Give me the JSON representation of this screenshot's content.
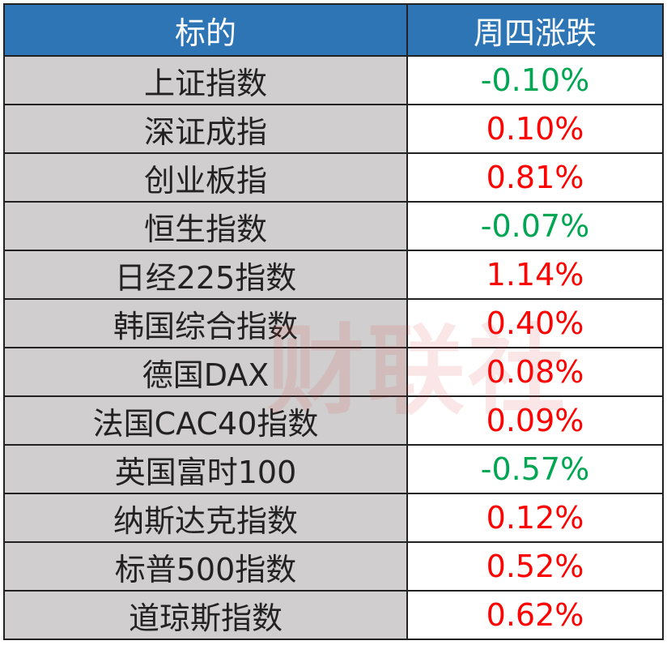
{
  "table": {
    "header": [
      "标的",
      "周四涨跌"
    ],
    "rows": [
      [
        "上证指数",
        "-0.10%"
      ],
      [
        "深证成指",
        "0.10%"
      ],
      [
        "创业板指",
        "0.81%"
      ],
      [
        "恒生指数",
        "-0.07%"
      ],
      [
        "日经225指数",
        "1.14%"
      ],
      [
        "韩国综合指数",
        "0.40%"
      ],
      [
        "德国DAX",
        "0.08%"
      ],
      [
        "法国CAC40指数",
        "0.09%"
      ],
      [
        "英国富时100",
        "-0.57%"
      ],
      [
        "纳斯达克指数",
        "0.12%"
      ],
      [
        "标普500指数",
        "0.52%"
      ],
      [
        "道琼斯指数",
        "0.62%"
      ]
    ],
    "value_colors": [
      "#00a651",
      "#ff0000",
      "#ff0000",
      "#00a651",
      "#ff0000",
      "#ff0000",
      "#ff0000",
      "#ff0000",
      "#00a651",
      "#ff0000",
      "#ff0000",
      "#ff0000"
    ]
  },
  "watermark": "财联社"
}
